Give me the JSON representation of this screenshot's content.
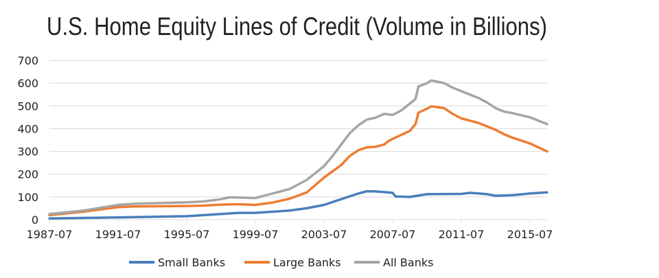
{
  "chart_data": {
    "type": "line",
    "title": "U.S. Home Equity Lines of Credit (Volume in Billions)",
    "xlabel": "",
    "ylabel": "",
    "ylim": [
      0,
      700
    ],
    "yticks": [
      "0",
      "100",
      "200",
      "300",
      "400",
      "500",
      "600",
      "700"
    ],
    "xticks": [
      "1987-07",
      "1991-07",
      "1995-07",
      "1999-07",
      "2003-07",
      "2007-07",
      "2011-07",
      "2015-07"
    ],
    "grid": "horizontal",
    "legend": "bottom",
    "series": [
      {
        "name": "Small Banks",
        "color": "#4a7ebb",
        "points": [
          [
            "1987-07",
            5
          ],
          [
            "1991-07",
            10
          ],
          [
            "1995-07",
            15
          ],
          [
            "1997-07",
            25
          ],
          [
            "1998-07",
            30
          ],
          [
            "1999-07",
            30
          ],
          [
            "2001-07",
            40
          ],
          [
            "2002-07",
            50
          ],
          [
            "2003-07",
            65
          ],
          [
            "2004-07",
            90
          ],
          [
            "2005-07",
            115
          ],
          [
            "2006-01",
            125
          ],
          [
            "2006-07",
            124
          ],
          [
            "2007-07",
            118
          ],
          [
            "2007-09",
            102
          ],
          [
            "2008-07",
            100
          ],
          [
            "2009-07",
            112
          ],
          [
            "2011-07",
            113
          ],
          [
            "2012-01",
            118
          ],
          [
            "2013-01",
            112
          ],
          [
            "2013-07",
            105
          ],
          [
            "2014-07",
            108
          ],
          [
            "2015-07",
            115
          ],
          [
            "2016-07",
            120
          ]
        ]
      },
      {
        "name": "Large Banks",
        "color": "#ed7d31",
        "points": [
          [
            "1987-07",
            20
          ],
          [
            "1989-07",
            35
          ],
          [
            "1991-07",
            55
          ],
          [
            "1992-07",
            58
          ],
          [
            "1995-07",
            60
          ],
          [
            "1996-07",
            62
          ],
          [
            "1997-07",
            66
          ],
          [
            "1998-07",
            68
          ],
          [
            "1999-07",
            65
          ],
          [
            "2000-07",
            75
          ],
          [
            "2001-07",
            92
          ],
          [
            "2002-07",
            120
          ],
          [
            "2003-07",
            185
          ],
          [
            "2004-07",
            240
          ],
          [
            "2005-01",
            280
          ],
          [
            "2005-07",
            305
          ],
          [
            "2006-01",
            318
          ],
          [
            "2006-07",
            320
          ],
          [
            "2007-01",
            330
          ],
          [
            "2007-04",
            345
          ],
          [
            "2007-07",
            355
          ],
          [
            "2008-07",
            390
          ],
          [
            "2008-11",
            420
          ],
          [
            "2009-01",
            470
          ],
          [
            "2009-07",
            488
          ],
          [
            "2009-10",
            498
          ],
          [
            "2010-07",
            490
          ],
          [
            "2011-01",
            465
          ],
          [
            "2011-07",
            445
          ],
          [
            "2012-07",
            425
          ],
          [
            "2013-07",
            395
          ],
          [
            "2014-01",
            375
          ],
          [
            "2014-07",
            360
          ],
          [
            "2015-07",
            335
          ],
          [
            "2016-07",
            300
          ]
        ]
      },
      {
        "name": "All Banks",
        "color": "#a5a5a5",
        "points": [
          [
            "1987-07",
            25
          ],
          [
            "1989-07",
            40
          ],
          [
            "1991-07",
            65
          ],
          [
            "1992-07",
            70
          ],
          [
            "1995-07",
            76
          ],
          [
            "1996-07",
            80
          ],
          [
            "1997-07",
            90
          ],
          [
            "1998-01",
            98
          ],
          [
            "1999-07",
            95
          ],
          [
            "2000-07",
            115
          ],
          [
            "2001-07",
            135
          ],
          [
            "2002-07",
            175
          ],
          [
            "2003-07",
            235
          ],
          [
            "2004-01",
            280
          ],
          [
            "2004-07",
            330
          ],
          [
            "2005-01",
            380
          ],
          [
            "2005-07",
            415
          ],
          [
            "2006-01",
            440
          ],
          [
            "2006-07",
            448
          ],
          [
            "2007-01",
            465
          ],
          [
            "2007-07",
            460
          ],
          [
            "2008-01",
            480
          ],
          [
            "2008-07",
            510
          ],
          [
            "2008-11",
            530
          ],
          [
            "2009-01",
            585
          ],
          [
            "2009-07",
            600
          ],
          [
            "2009-10",
            612
          ],
          [
            "2010-07",
            600
          ],
          [
            "2011-01",
            580
          ],
          [
            "2011-07",
            565
          ],
          [
            "2012-01",
            550
          ],
          [
            "2012-07",
            535
          ],
          [
            "2013-01",
            515
          ],
          [
            "2013-07",
            490
          ],
          [
            "2014-01",
            475
          ],
          [
            "2014-07",
            468
          ],
          [
            "2015-07",
            450
          ],
          [
            "2016-07",
            420
          ]
        ]
      }
    ]
  }
}
